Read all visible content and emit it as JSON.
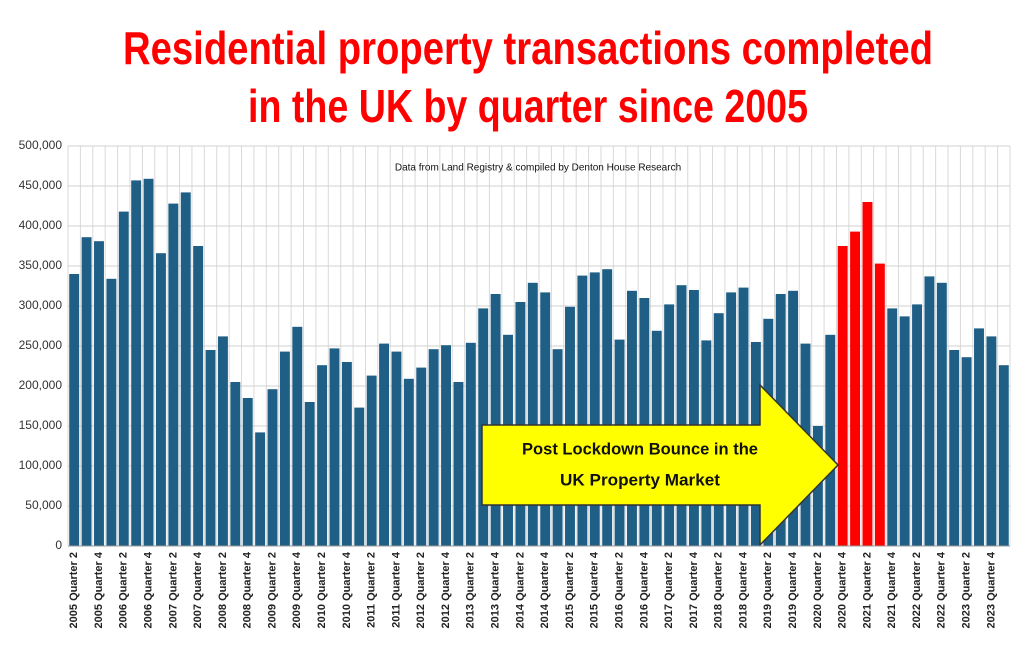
{
  "chart_data": {
    "type": "bar",
    "title": [
      "Residential property transactions completed",
      "in the UK by quarter since 2005"
    ],
    "subtitle": "Data from Land Registry & compiled by Denton House Research",
    "annotation": [
      "Post Lockdown Bounce in the",
      "UK Property Market"
    ],
    "categories": [
      "2005 Quarter 2",
      null,
      "2005 Quarter 4",
      null,
      "2006 Quarter 2",
      null,
      "2006 Quarter 4",
      null,
      "2007 Quarter 2",
      null,
      "2007 Quarter 4",
      null,
      "2008 Quarter 2",
      null,
      "2008 Quarter 4",
      null,
      "2009 Quarter 2",
      null,
      "2009 Quarter 4",
      null,
      "2010 Quarter 2",
      null,
      "2010 Quarter 4",
      null,
      "2011 Quarter 2",
      null,
      "2011 Quarter 4",
      null,
      "2012 Quarter 2",
      null,
      "2012 Quarter 4",
      null,
      "2013 Quarter 2",
      null,
      "2013 Quarter 4",
      null,
      "2014 Quarter 2",
      null,
      "2014 Quarter 4",
      null,
      "2015 Quarter 2",
      null,
      "2015 Quarter 4",
      null,
      "2016 Quarter 2",
      null,
      "2016 Quarter 4",
      null,
      "2017 Quarter 2",
      null,
      "2017 Quarter 4",
      null,
      "2018 Quarter 2",
      null,
      "2018 Quarter 4",
      null,
      "2019 Quarter 2",
      null,
      "2019 Quarter 4",
      null,
      "2020 Quarter 2",
      null,
      "2020 Quarter 4",
      null,
      "2021 Quarter 2",
      null,
      "2021 Quarter 4",
      null,
      "2022 Quarter 2",
      null,
      "2022 Quarter 4",
      null,
      "2023 Quarter 2",
      null,
      "2023 Quarter 4",
      null
    ],
    "values": [
      340000,
      386000,
      381000,
      334000,
      418000,
      457000,
      459000,
      366000,
      428000,
      442000,
      375000,
      245000,
      262000,
      205000,
      185000,
      142000,
      196000,
      243000,
      274000,
      180000,
      226000,
      247000,
      230000,
      173000,
      213000,
      253000,
      243000,
      209000,
      223000,
      246000,
      251000,
      205000,
      254000,
      297000,
      315000,
      264000,
      305000,
      329000,
      317000,
      246000,
      299000,
      338000,
      342000,
      346000,
      258000,
      319000,
      310000,
      269000,
      302000,
      326000,
      320000,
      257000,
      291000,
      317000,
      323000,
      255000,
      284000,
      315000,
      319000,
      253000,
      150000,
      264000,
      375000,
      393000,
      430000,
      353000,
      297000,
      287000,
      302000,
      337000,
      329000,
      245000,
      236000,
      272000,
      262000,
      226000
    ],
    "colors": [
      "#1f5f86",
      "#1f5f86",
      "#1f5f86",
      "#1f5f86",
      "#1f5f86",
      "#1f5f86",
      "#1f5f86",
      "#1f5f86",
      "#1f5f86",
      "#1f5f86",
      "#1f5f86",
      "#1f5f86",
      "#1f5f86",
      "#1f5f86",
      "#1f5f86",
      "#1f5f86",
      "#1f5f86",
      "#1f5f86",
      "#1f5f86",
      "#1f5f86",
      "#1f5f86",
      "#1f5f86",
      "#1f5f86",
      "#1f5f86",
      "#1f5f86",
      "#1f5f86",
      "#1f5f86",
      "#1f5f86",
      "#1f5f86",
      "#1f5f86",
      "#1f5f86",
      "#1f5f86",
      "#1f5f86",
      "#1f5f86",
      "#1f5f86",
      "#1f5f86",
      "#1f5f86",
      "#1f5f86",
      "#1f5f86",
      "#1f5f86",
      "#1f5f86",
      "#1f5f86",
      "#1f5f86",
      "#1f5f86",
      "#1f5f86",
      "#1f5f86",
      "#1f5f86",
      "#1f5f86",
      "#1f5f86",
      "#1f5f86",
      "#1f5f86",
      "#1f5f86",
      "#1f5f86",
      "#1f5f86",
      "#1f5f86",
      "#1f5f86",
      "#1f5f86",
      "#1f5f86",
      "#1f5f86",
      "#1f5f86",
      "#1f5f86",
      "#1f5f86",
      "#ff0000",
      "#ff0000",
      "#ff0000",
      "#ff0000",
      "#1f5f86",
      "#1f5f86",
      "#1f5f86",
      "#1f5f86",
      "#1f5f86",
      "#1f5f86",
      "#1f5f86",
      "#1f5f86",
      "#1f5f86",
      "#1f5f86"
    ],
    "ylim": [
      0,
      500000
    ],
    "yticks": [
      0,
      {
        "value": 50000,
        "label": "50,000"
      },
      {
        "value": 100000,
        "label": "100,000"
      },
      {
        "value": 150000,
        "label": "150,000"
      },
      {
        "value": 200000,
        "label": "200,000"
      },
      {
        "value": 250000,
        "label": "250,000"
      },
      {
        "value": 300000,
        "label": "300,000"
      },
      {
        "value": 350000,
        "label": "350,000"
      },
      {
        "value": 400000,
        "label": "400,000"
      },
      {
        "value": 450000,
        "label": "450,000"
      },
      {
        "value": 500000,
        "label": "500,000"
      }
    ],
    "grid": true
  }
}
